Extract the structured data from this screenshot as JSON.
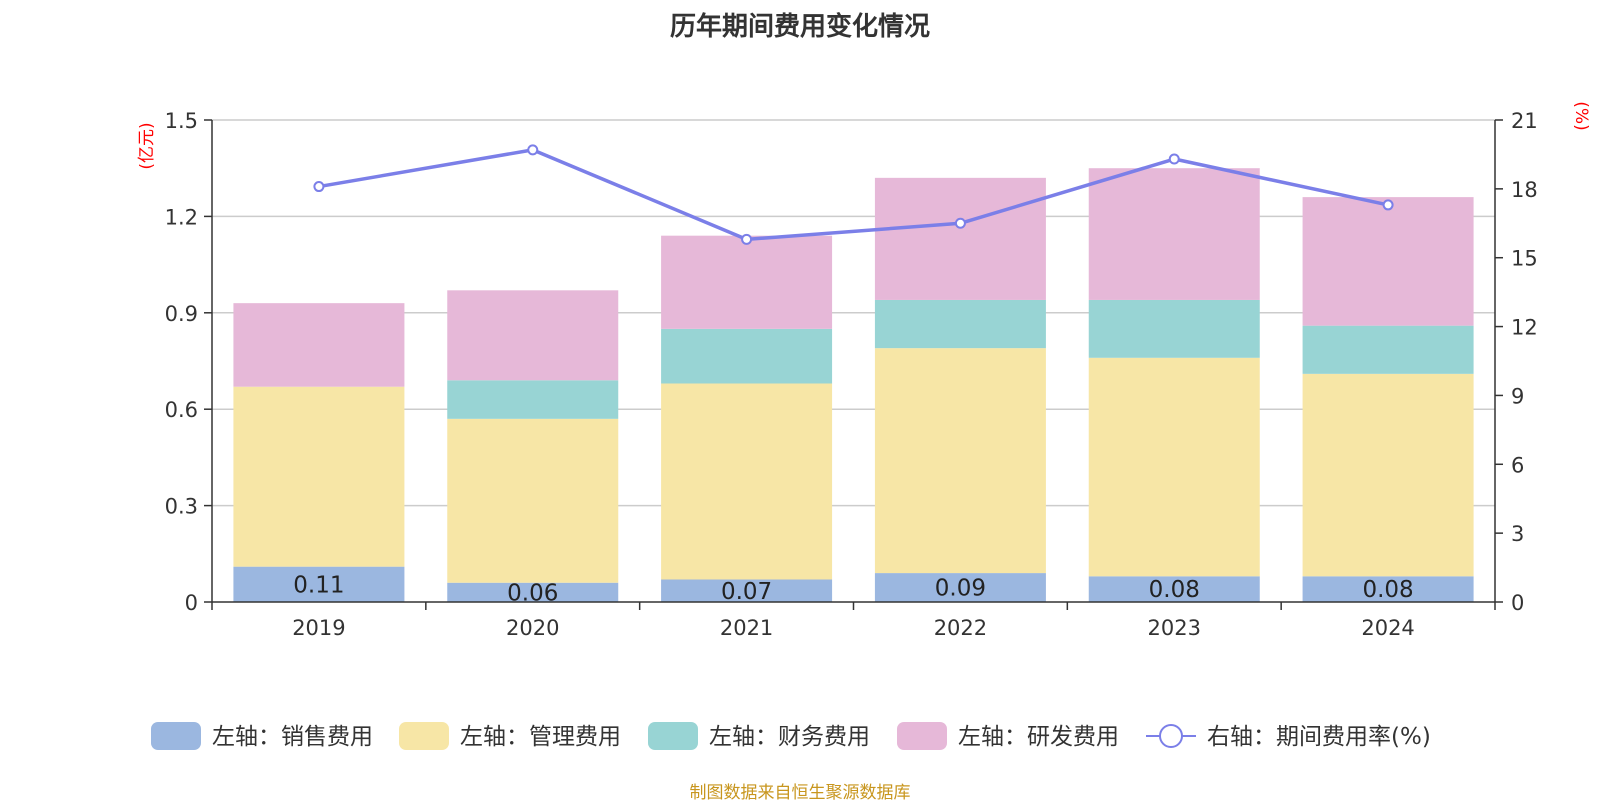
{
  "chart_data": {
    "type": "bar",
    "stacked": true,
    "title": "历年期间费用变化情况",
    "categories": [
      "2019",
      "2020",
      "2021",
      "2022",
      "2023",
      "2024"
    ],
    "left_axis": {
      "unit": "(亿元)",
      "min": 0,
      "max": 1.5,
      "ticks": [
        "0",
        "0.3",
        "0.6",
        "0.9",
        "1.2",
        "1.5"
      ]
    },
    "right_axis": {
      "unit": "(%)",
      "min": 0,
      "max": 21,
      "ticks": [
        "0",
        "3",
        "6",
        "9",
        "12",
        "15",
        "18",
        "21"
      ]
    },
    "grid": true,
    "legend_position": "bottom",
    "series": [
      {
        "name": "左轴：销售费用",
        "axis": "left",
        "color": "#9bb7e0",
        "values": [
          0.11,
          0.06,
          0.07,
          0.09,
          0.08,
          0.08
        ],
        "labels": [
          "0.11",
          "0.06",
          "0.07",
          "0.09",
          "0.08",
          "0.08"
        ]
      },
      {
        "name": "左轴：管理费用",
        "axis": "left",
        "color": "#f7e6a6",
        "values": [
          0.56,
          0.51,
          0.61,
          0.7,
          0.68,
          0.63
        ]
      },
      {
        "name": "左轴：财务费用",
        "axis": "left",
        "color": "#98d4d4",
        "values": [
          0.0,
          0.12,
          0.17,
          0.15,
          0.18,
          0.15
        ]
      },
      {
        "name": "左轴：研发费用",
        "axis": "left",
        "color": "#e6b8d8",
        "values": [
          0.26,
          0.28,
          0.29,
          0.38,
          0.41,
          0.4
        ]
      }
    ],
    "line_series": {
      "name": "右轴：期间费用率(%)",
      "axis": "right",
      "color": "#7b7fe8",
      "values": [
        18.1,
        19.7,
        15.8,
        16.5,
        19.3,
        17.3
      ]
    }
  },
  "source_note": "制图数据来自恒生聚源数据库",
  "colors": {
    "unit_text": "#ff0000",
    "source_text": "#c8961e",
    "grid": "#cccccc",
    "axis": "#333333"
  }
}
